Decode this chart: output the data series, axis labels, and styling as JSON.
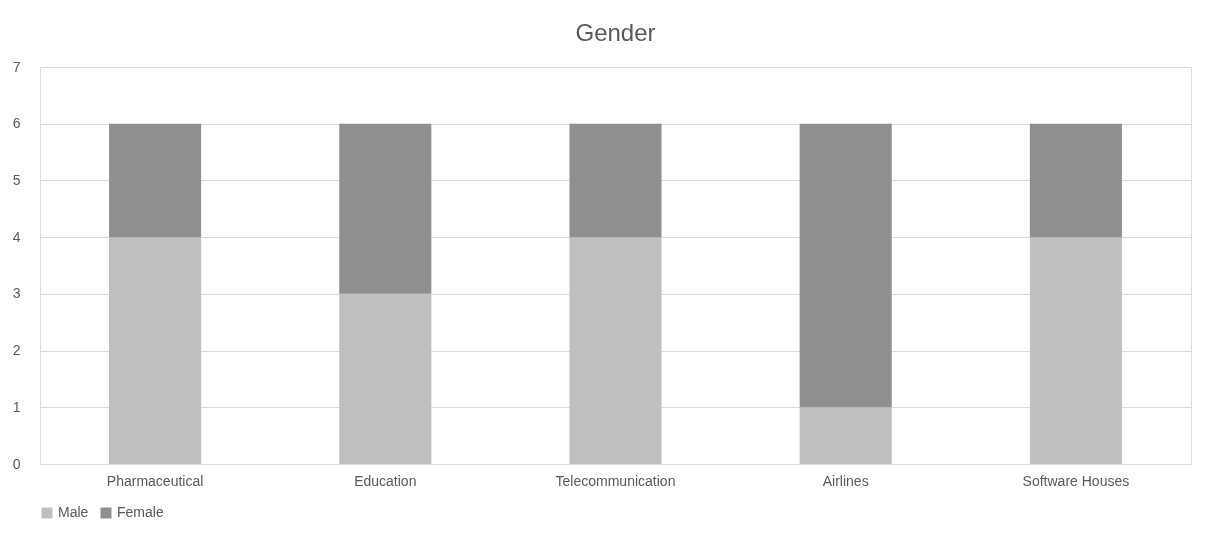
{
  "chart_data": {
    "type": "bar",
    "title": "Gender",
    "stacked": true,
    "categories": [
      "Pharmaceutical",
      "Education",
      "Telecommunication",
      "Airlines",
      "Software Houses"
    ],
    "series": [
      {
        "name": "Male",
        "color": "#bfbfbf",
        "values": [
          4,
          3,
          4,
          1,
          4
        ]
      },
      {
        "name": "Female",
        "color": "#8f8f8f",
        "values": [
          2,
          3,
          2,
          5,
          2
        ]
      }
    ],
    "ylim": [
      0,
      7
    ],
    "yticks": [
      0,
      1,
      2,
      3,
      4,
      5,
      6,
      7
    ],
    "grid": "y",
    "legend": "bottom"
  }
}
